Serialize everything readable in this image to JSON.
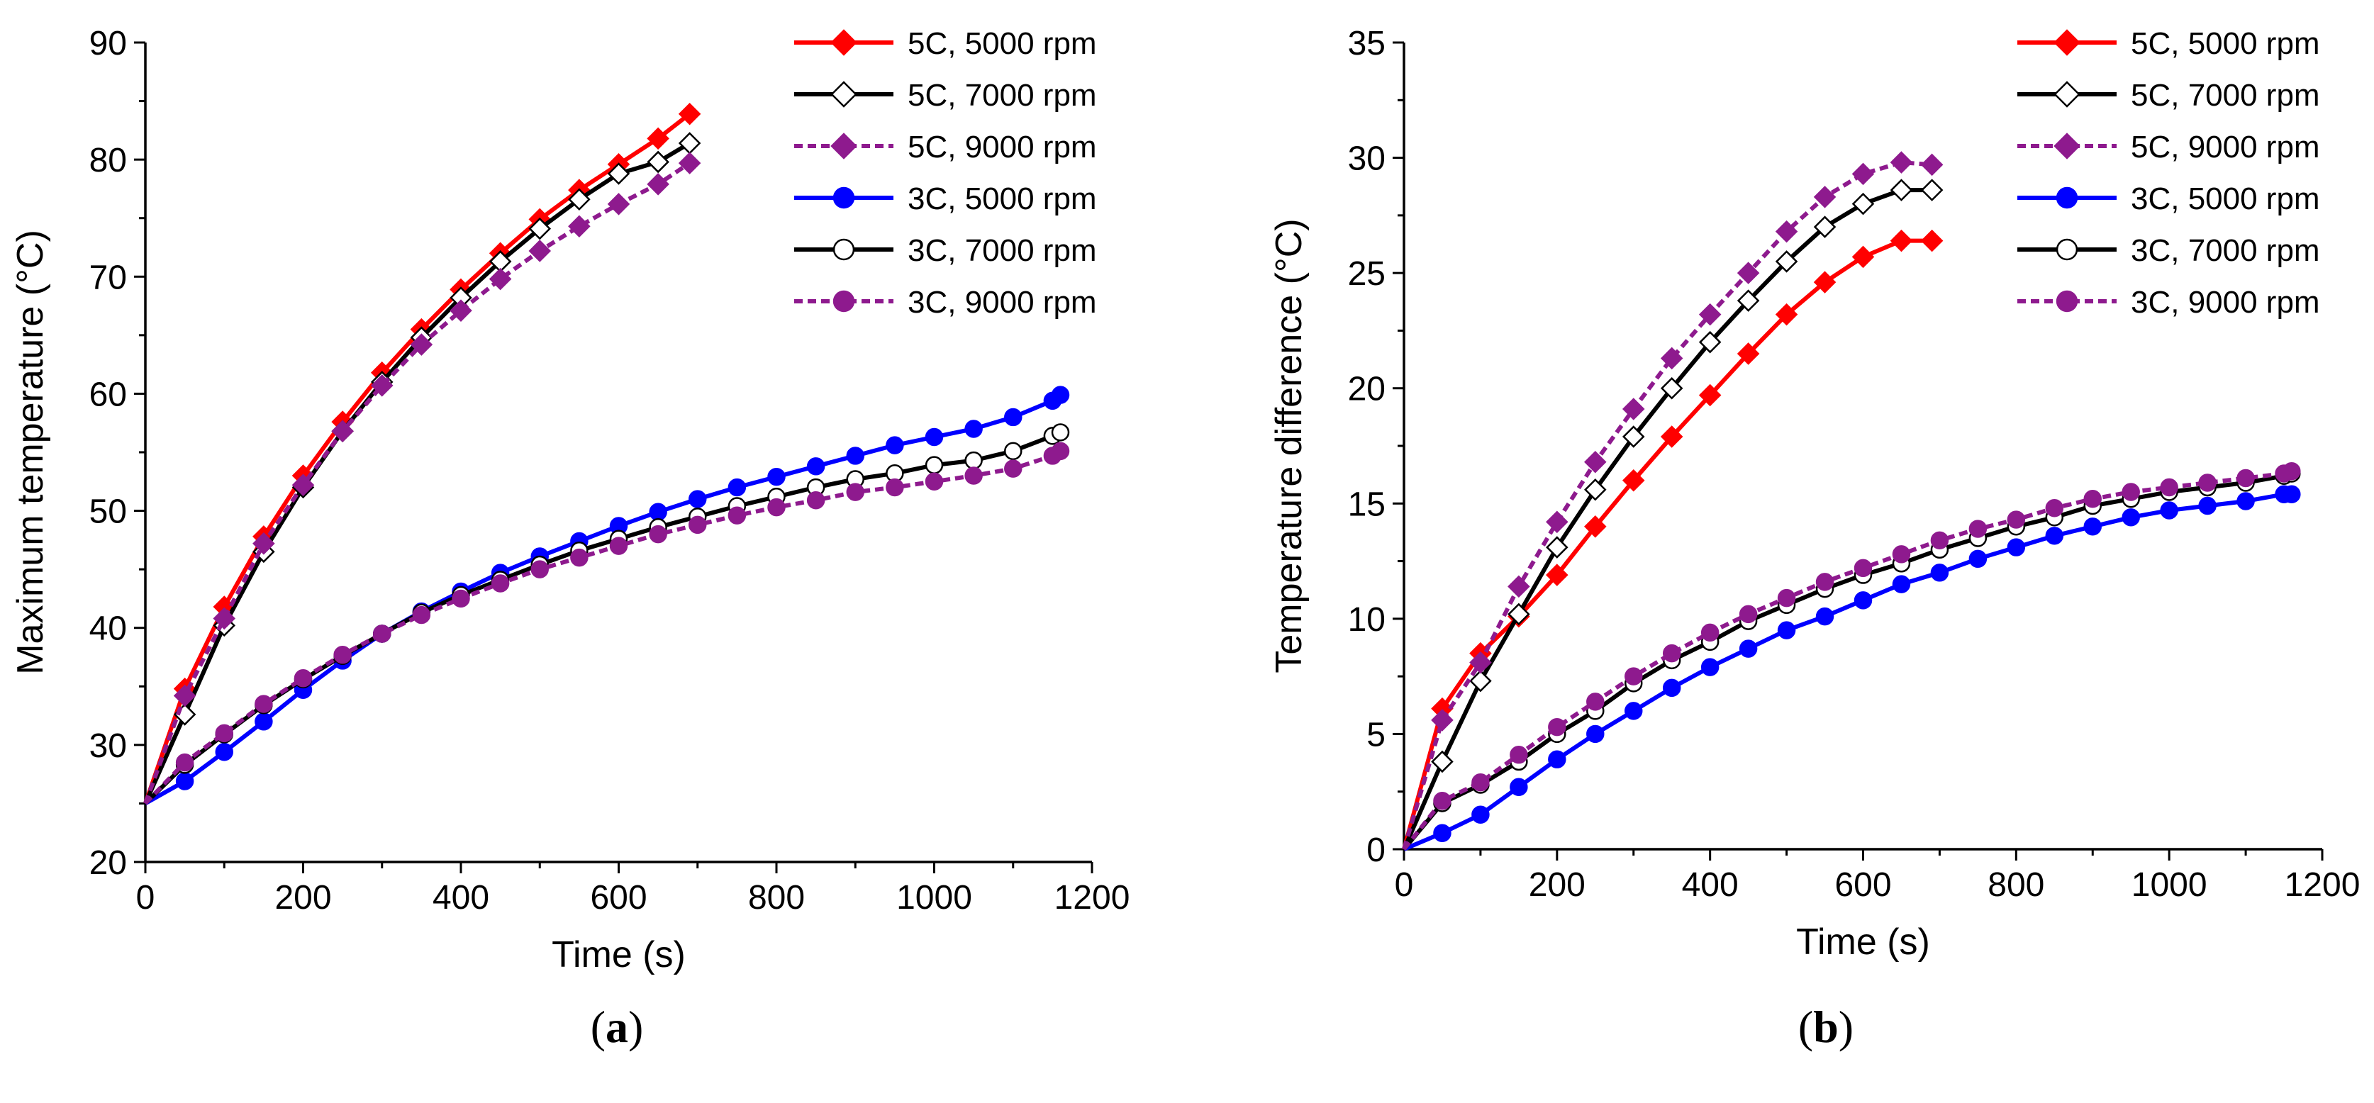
{
  "series_styles": [
    {
      "name": "5C, 5000 rpm",
      "color": "#ff0000",
      "marker": "diamond",
      "filled": true,
      "dash": false
    },
    {
      "name": "5C, 7000 rpm",
      "color": "#000000",
      "marker": "diamond",
      "filled": false,
      "dash": false
    },
    {
      "name": "5C, 9000 rpm",
      "color": "#8e1a8e",
      "marker": "diamond",
      "filled": true,
      "dash": true
    },
    {
      "name": "3C, 5000 rpm",
      "color": "#0000ff",
      "marker": "circle",
      "filled": true,
      "dash": false
    },
    {
      "name": "3C, 7000 rpm",
      "color": "#000000",
      "marker": "circle",
      "filled": false,
      "dash": false
    },
    {
      "name": "3C, 9000 rpm",
      "color": "#8e1a8e",
      "marker": "circle",
      "filled": true,
      "dash": true
    }
  ],
  "panel_labels": {
    "a_open": "(",
    "a": "a",
    "a_close": ")",
    "b_open": "(",
    "b": "b",
    "b_close": ")"
  },
  "chart_data": [
    {
      "type": "line",
      "title": "",
      "xlabel": "Time (s)",
      "ylabel": "Maximum temperature (°C)",
      "xlim": [
        0,
        1200
      ],
      "ylim": [
        20,
        90
      ],
      "xticks": [
        0,
        200,
        400,
        600,
        800,
        1000,
        1200
      ],
      "yticks": [
        20,
        30,
        40,
        50,
        60,
        70,
        80,
        90
      ],
      "legend": "top-right",
      "series": [
        {
          "name": "5C, 5000 rpm",
          "x": [
            0,
            50,
            100,
            150,
            200,
            250,
            300,
            350,
            400,
            450,
            500,
            550,
            600,
            650,
            690
          ],
          "values": [
            25,
            34.8,
            41.8,
            47.8,
            53.0,
            57.6,
            61.8,
            65.5,
            68.9,
            72.0,
            74.9,
            77.4,
            79.6,
            81.8,
            83.9
          ]
        },
        {
          "name": "5C, 7000 rpm",
          "x": [
            0,
            50,
            100,
            150,
            200,
            250,
            300,
            350,
            400,
            450,
            500,
            550,
            600,
            650,
            690
          ],
          "values": [
            25,
            32.6,
            40.2,
            46.5,
            52.0,
            56.8,
            61.0,
            64.8,
            68.2,
            71.3,
            74.1,
            76.6,
            78.8,
            79.8,
            81.4
          ]
        },
        {
          "name": "5C, 9000 rpm",
          "x": [
            0,
            50,
            100,
            150,
            200,
            250,
            300,
            350,
            400,
            450,
            500,
            550,
            600,
            650,
            690
          ],
          "values": [
            25,
            34.2,
            40.8,
            47.2,
            52.2,
            56.8,
            60.7,
            64.2,
            67.1,
            69.8,
            72.2,
            74.3,
            76.2,
            77.9,
            79.7
          ]
        },
        {
          "name": "3C, 5000 rpm",
          "x": [
            0,
            50,
            100,
            150,
            200,
            250,
            300,
            350,
            400,
            450,
            500,
            550,
            600,
            650,
            700,
            750,
            800,
            850,
            900,
            950,
            1000,
            1050,
            1100,
            1150,
            1160
          ],
          "values": [
            25,
            26.9,
            29.4,
            32.0,
            34.7,
            37.2,
            39.5,
            41.4,
            43.1,
            44.7,
            46.1,
            47.4,
            48.7,
            49.9,
            51.0,
            52.0,
            52.9,
            53.8,
            54.7,
            55.6,
            56.3,
            57.0,
            58.0,
            59.4,
            59.9
          ]
        },
        {
          "name": "3C, 7000 rpm",
          "x": [
            0,
            50,
            100,
            150,
            200,
            250,
            300,
            350,
            400,
            450,
            500,
            550,
            600,
            650,
            700,
            750,
            800,
            850,
            900,
            950,
            1000,
            1050,
            1100,
            1150,
            1160
          ],
          "values": [
            25,
            28.3,
            30.9,
            33.4,
            35.6,
            37.6,
            39.5,
            41.3,
            42.8,
            44.1,
            45.4,
            46.6,
            47.6,
            48.6,
            49.5,
            50.4,
            51.2,
            52.0,
            52.7,
            53.2,
            53.9,
            54.3,
            55.1,
            56.4,
            56.7
          ]
        },
        {
          "name": "3C, 9000 rpm",
          "x": [
            0,
            50,
            100,
            150,
            200,
            250,
            300,
            350,
            400,
            450,
            500,
            550,
            600,
            650,
            700,
            750,
            800,
            850,
            900,
            950,
            1000,
            1050,
            1100,
            1150,
            1160
          ],
          "values": [
            25,
            28.5,
            31.0,
            33.5,
            35.7,
            37.7,
            39.5,
            41.1,
            42.5,
            43.8,
            45.0,
            46.0,
            47.0,
            48.0,
            48.8,
            49.6,
            50.3,
            50.9,
            51.6,
            52.0,
            52.5,
            53.0,
            53.6,
            54.7,
            55.1
          ]
        }
      ]
    },
    {
      "type": "line",
      "title": "",
      "xlabel": "Time (s)",
      "ylabel": "Temperature difference (°C)",
      "xlim": [
        0,
        1200
      ],
      "ylim": [
        0,
        35
      ],
      "xticks": [
        0,
        200,
        400,
        600,
        800,
        1000,
        1200
      ],
      "yticks": [
        0,
        5,
        10,
        15,
        20,
        25,
        30,
        35
      ],
      "legend": "top-right",
      "series": [
        {
          "name": "5C, 5000 rpm",
          "x": [
            0,
            50,
            100,
            150,
            200,
            250,
            300,
            350,
            400,
            450,
            500,
            550,
            600,
            650,
            690
          ],
          "values": [
            0,
            6.1,
            8.5,
            10.1,
            11.9,
            14.0,
            16.0,
            17.9,
            19.7,
            21.5,
            23.2,
            24.6,
            25.7,
            26.4,
            26.4
          ]
        },
        {
          "name": "5C, 7000 rpm",
          "x": [
            0,
            50,
            100,
            150,
            200,
            250,
            300,
            350,
            400,
            450,
            500,
            550,
            600,
            650,
            690
          ],
          "values": [
            0,
            3.8,
            7.3,
            10.2,
            13.1,
            15.6,
            17.9,
            20.0,
            22.0,
            23.8,
            25.5,
            27.0,
            28.0,
            28.6,
            28.6
          ]
        },
        {
          "name": "5C, 9000 rpm",
          "x": [
            0,
            50,
            100,
            150,
            200,
            250,
            300,
            350,
            400,
            450,
            500,
            550,
            600,
            650,
            690
          ],
          "values": [
            0,
            5.6,
            8.1,
            11.4,
            14.2,
            16.8,
            19.1,
            21.3,
            23.2,
            25.0,
            26.8,
            28.3,
            29.3,
            29.8,
            29.7
          ]
        },
        {
          "name": "3C, 5000 rpm",
          "x": [
            0,
            50,
            100,
            150,
            200,
            250,
            300,
            350,
            400,
            450,
            500,
            550,
            600,
            650,
            700,
            750,
            800,
            850,
            900,
            950,
            1000,
            1050,
            1100,
            1150,
            1160
          ],
          "values": [
            0,
            0.7,
            1.5,
            2.7,
            3.9,
            5.0,
            6.0,
            7.0,
            7.9,
            8.7,
            9.5,
            10.1,
            10.8,
            11.5,
            12.0,
            12.6,
            13.1,
            13.6,
            14.0,
            14.4,
            14.7,
            14.9,
            15.1,
            15.4,
            15.4
          ]
        },
        {
          "name": "3C, 7000 rpm",
          "x": [
            0,
            50,
            100,
            150,
            200,
            250,
            300,
            350,
            400,
            450,
            500,
            550,
            600,
            650,
            700,
            750,
            800,
            850,
            900,
            950,
            1000,
            1050,
            1100,
            1150,
            1160
          ],
          "values": [
            0,
            2.0,
            2.8,
            3.8,
            5.0,
            6.0,
            7.2,
            8.2,
            9.0,
            9.9,
            10.6,
            11.3,
            11.9,
            12.4,
            13.0,
            13.5,
            14.0,
            14.4,
            14.9,
            15.2,
            15.5,
            15.7,
            15.9,
            16.2,
            16.3
          ]
        },
        {
          "name": "3C, 9000 rpm",
          "x": [
            0,
            50,
            100,
            150,
            200,
            250,
            300,
            350,
            400,
            450,
            500,
            550,
            600,
            650,
            700,
            750,
            800,
            850,
            900,
            950,
            1000,
            1050,
            1100,
            1150,
            1160
          ],
          "values": [
            0,
            2.1,
            2.9,
            4.1,
            5.3,
            6.4,
            7.5,
            8.5,
            9.4,
            10.2,
            10.9,
            11.6,
            12.2,
            12.8,
            13.4,
            13.9,
            14.3,
            14.8,
            15.2,
            15.5,
            15.7,
            15.9,
            16.1,
            16.3,
            16.4
          ]
        }
      ]
    }
  ]
}
